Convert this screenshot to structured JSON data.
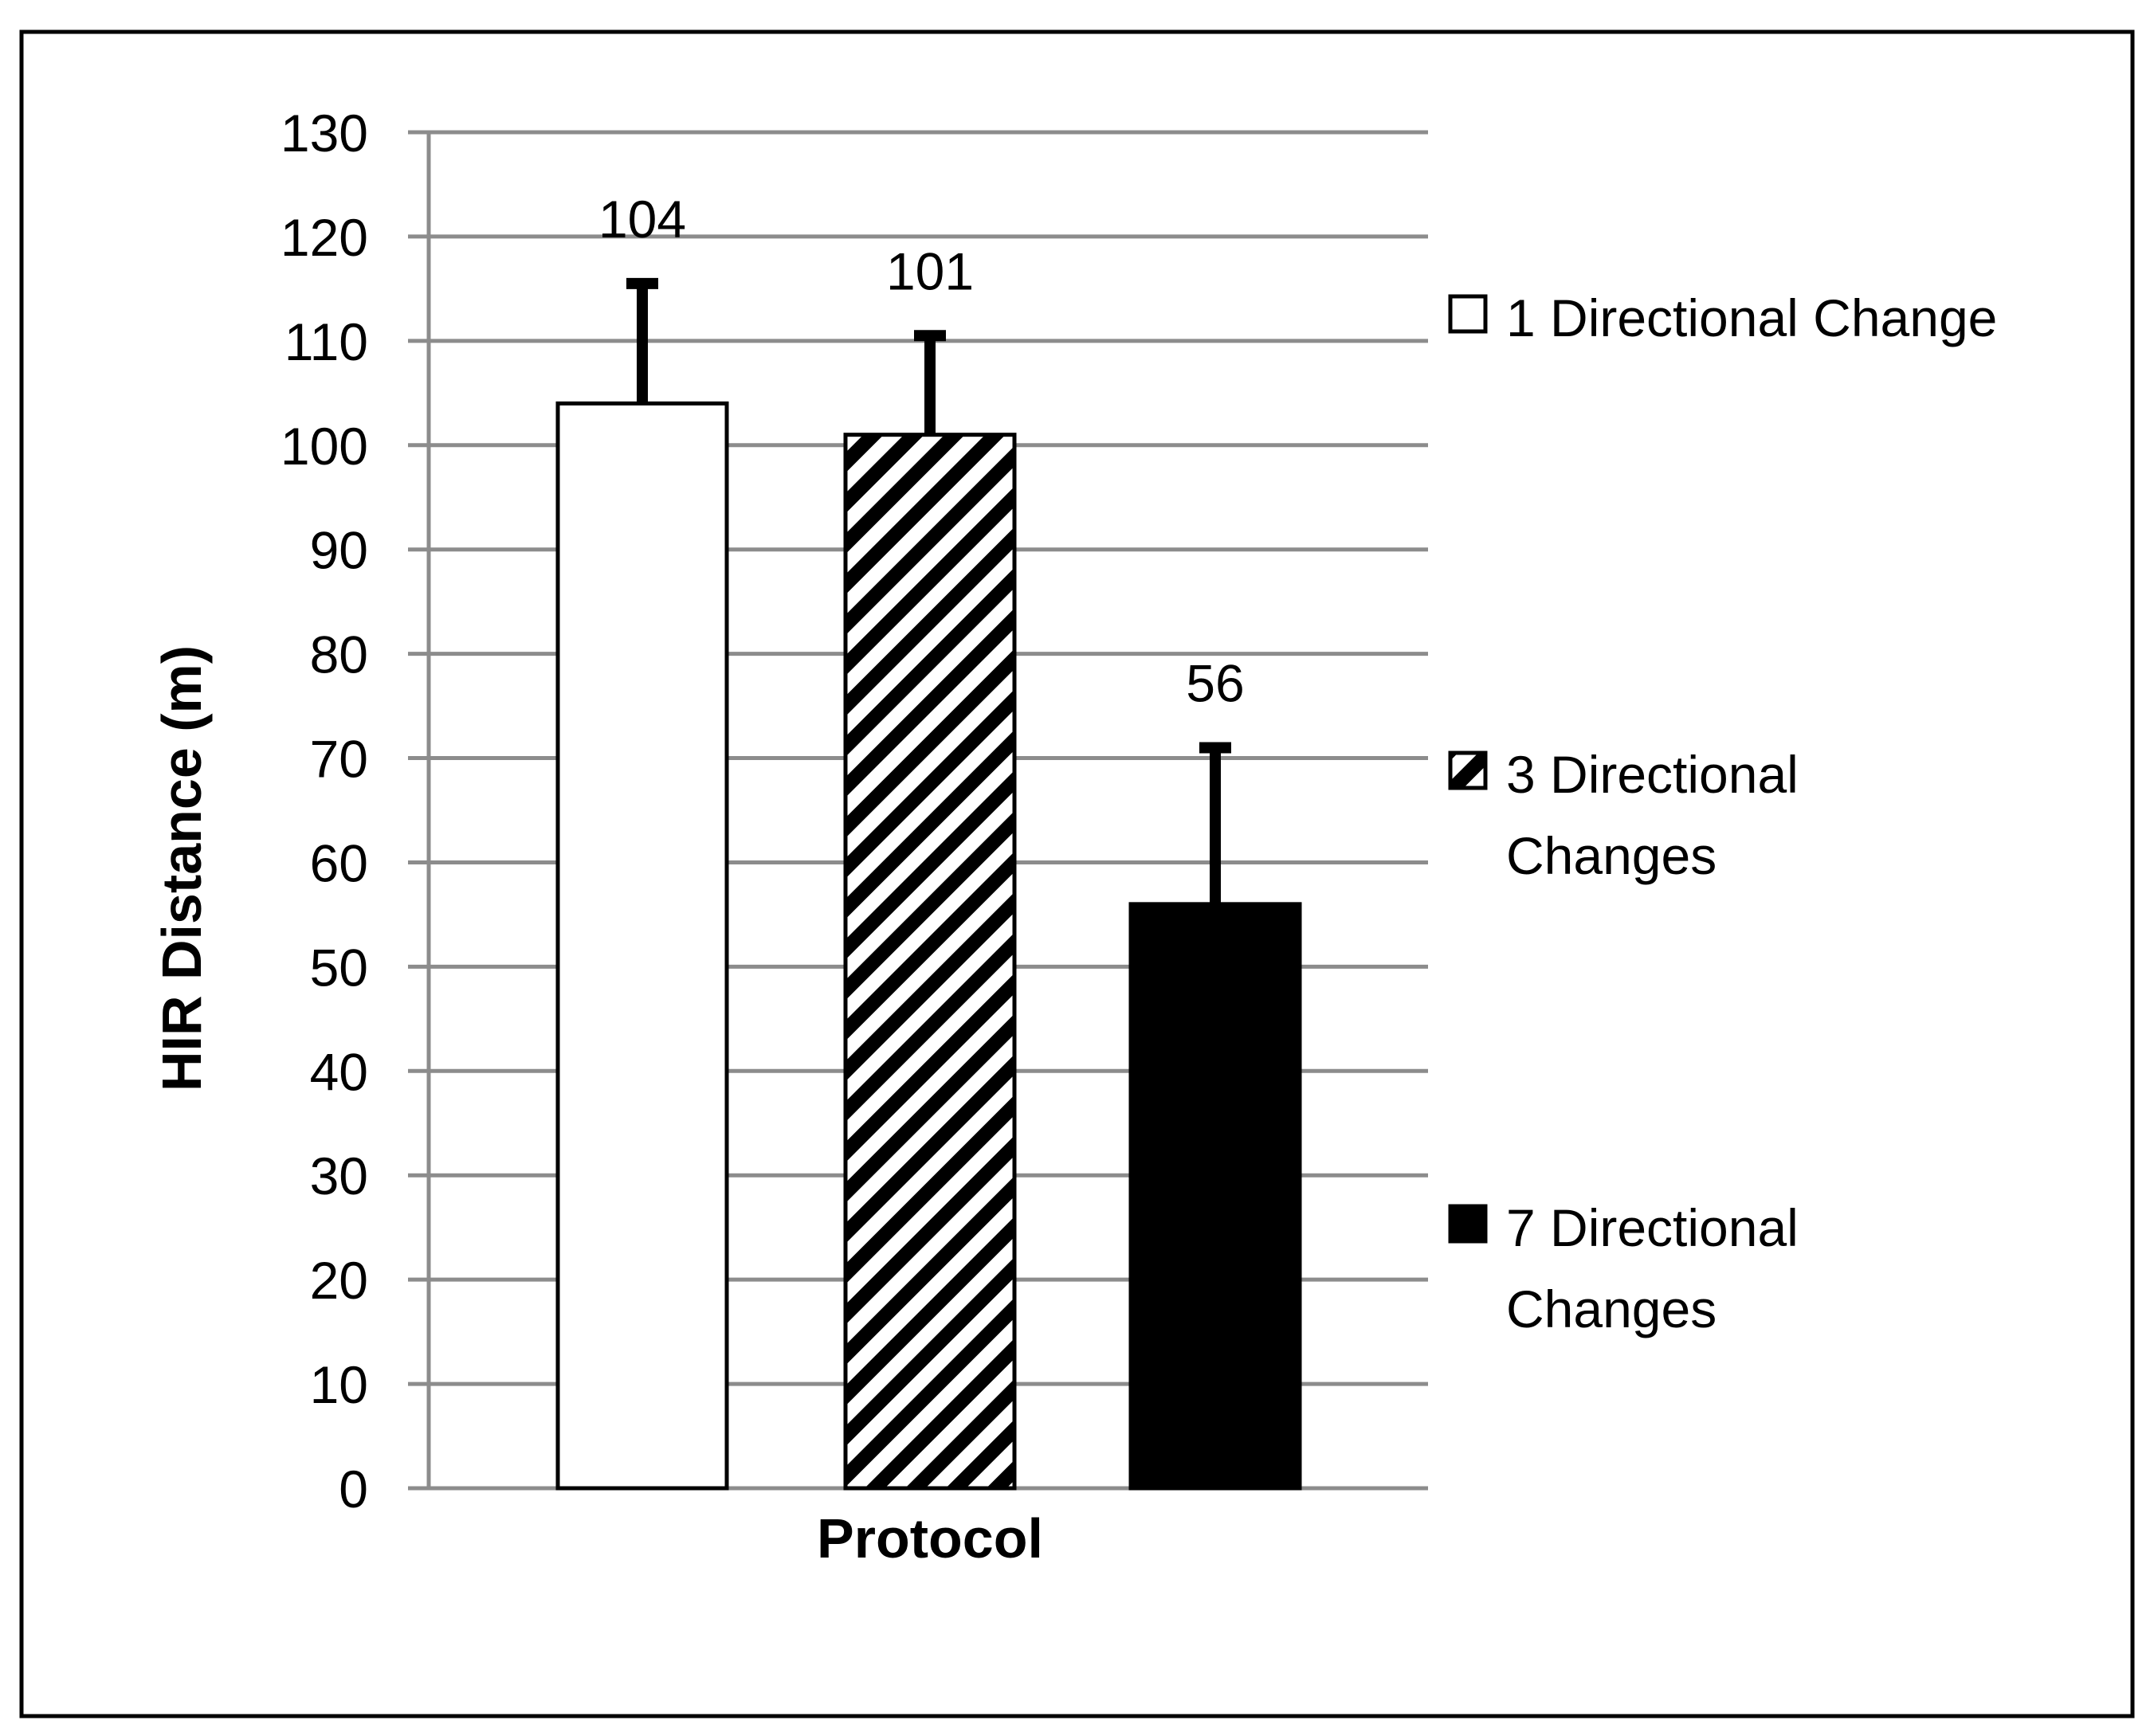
{
  "chart_data": {
    "type": "bar",
    "title": "",
    "xlabel": "Protocol",
    "ylabel": "HIR Distance (m)",
    "ylim": [
      0,
      130
    ],
    "yticks": [
      0,
      10,
      20,
      30,
      40,
      50,
      60,
      70,
      80,
      90,
      100,
      110,
      120,
      130
    ],
    "grid": "horizontal",
    "legend_position": "right",
    "series": [
      {
        "name": "1 Directional Change",
        "value": 104,
        "error": 11.5,
        "label": "104",
        "fill": "white"
      },
      {
        "name": "3 Directional Changes",
        "value": 101,
        "error": 9.5,
        "label": "101",
        "fill": "diagonal-hatch"
      },
      {
        "name": "7 Directional Changes",
        "value": 56,
        "error": 15,
        "label": "56",
        "fill": "black"
      }
    ],
    "colors": {
      "bar_outline": "#000000",
      "grid": "#8c8c8c",
      "axis": "#8c8c8c",
      "black": "#000000",
      "white": "#ffffff"
    }
  }
}
